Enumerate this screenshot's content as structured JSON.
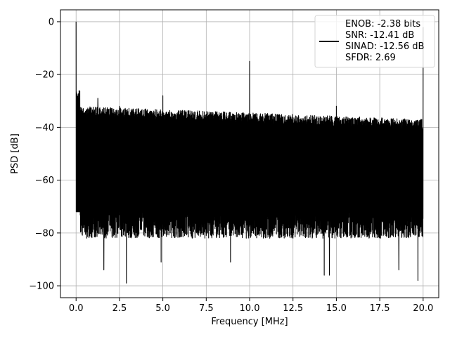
{
  "chart_data": {
    "type": "line",
    "title": "",
    "xlabel": "Frequency [MHz]",
    "ylabel": "PSD [dB]",
    "xlim": [
      -0.9,
      20.9
    ],
    "ylim": [
      -104.5,
      4.5
    ],
    "xticks": [
      0.0,
      2.5,
      5.0,
      7.5,
      10.0,
      12.5,
      15.0,
      17.5,
      20.0
    ],
    "xtick_labels": [
      "0.0",
      "2.5",
      "5.0",
      "7.5",
      "10.0",
      "12.5",
      "15.0",
      "17.5",
      "20.0"
    ],
    "yticks": [
      0,
      -20,
      -40,
      -60,
      -80,
      -100
    ],
    "ytick_labels": [
      "0",
      "−20",
      "−40",
      "−60",
      "−80",
      "−100"
    ],
    "grid": true,
    "legend_position": "top-right",
    "legend_entries": [
      "ENOB: -2.38 bits",
      "SNR: -12.41 dB",
      "SINAD: -12.56 dB",
      "SFDR: 2.69"
    ],
    "line_color": "#000000",
    "series": [
      {
        "description": "dense noise floor spanning roughly -35 to -80 dB across 0-20 MHz",
        "noise_upper_start": -32,
        "noise_upper_end": -37,
        "noise_lower": -82,
        "spurs": [
          {
            "x": 0.0,
            "y": 0.0
          },
          {
            "x": 1.25,
            "y": -29
          },
          {
            "x": 2.5,
            "y": -32
          },
          {
            "x": 5.0,
            "y": -28
          },
          {
            "x": 10.0,
            "y": -15
          },
          {
            "x": 15.0,
            "y": -32
          },
          {
            "x": 20.0,
            "y": -2
          }
        ],
        "minima": [
          {
            "x": 0.2,
            "y": -84
          },
          {
            "x": 1.6,
            "y": -94
          },
          {
            "x": 2.9,
            "y": -99
          },
          {
            "x": 4.9,
            "y": -91
          },
          {
            "x": 8.9,
            "y": -91
          },
          {
            "x": 14.3,
            "y": -96
          },
          {
            "x": 14.6,
            "y": -96
          },
          {
            "x": 18.6,
            "y": -94
          },
          {
            "x": 19.7,
            "y": -98
          }
        ]
      }
    ]
  }
}
